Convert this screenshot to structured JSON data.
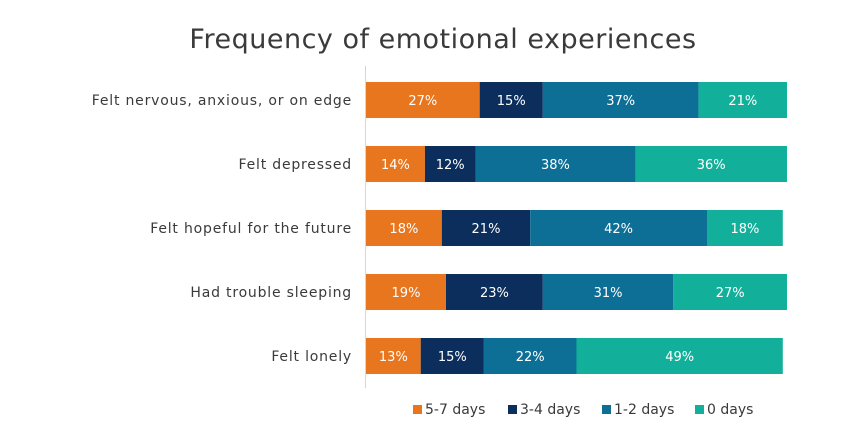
{
  "chart_data": {
    "type": "bar",
    "orientation": "horizontal",
    "stacked": true,
    "title": "Frequency of emotional experiences",
    "categories": [
      "Felt nervous, anxious, or on edge",
      "Felt depressed",
      "Felt hopeful for the future",
      "Had trouble sleeping",
      "Felt lonely"
    ],
    "series": [
      {
        "name": "5-7 days",
        "color": "#e8761e",
        "values": [
          27,
          14,
          18,
          19,
          13
        ]
      },
      {
        "name": "3-4 days",
        "color": "#0b2e5c",
        "values": [
          15,
          12,
          21,
          23,
          15
        ]
      },
      {
        "name": "1-2 days",
        "color": "#0e6f96",
        "values": [
          37,
          38,
          42,
          31,
          22
        ]
      },
      {
        "name": "0 days",
        "color": "#12b09b",
        "values": [
          21,
          36,
          18,
          27,
          49
        ]
      }
    ],
    "value_suffix": "%",
    "xlim": [
      0,
      100
    ],
    "grid": false,
    "legend": "bottom"
  }
}
